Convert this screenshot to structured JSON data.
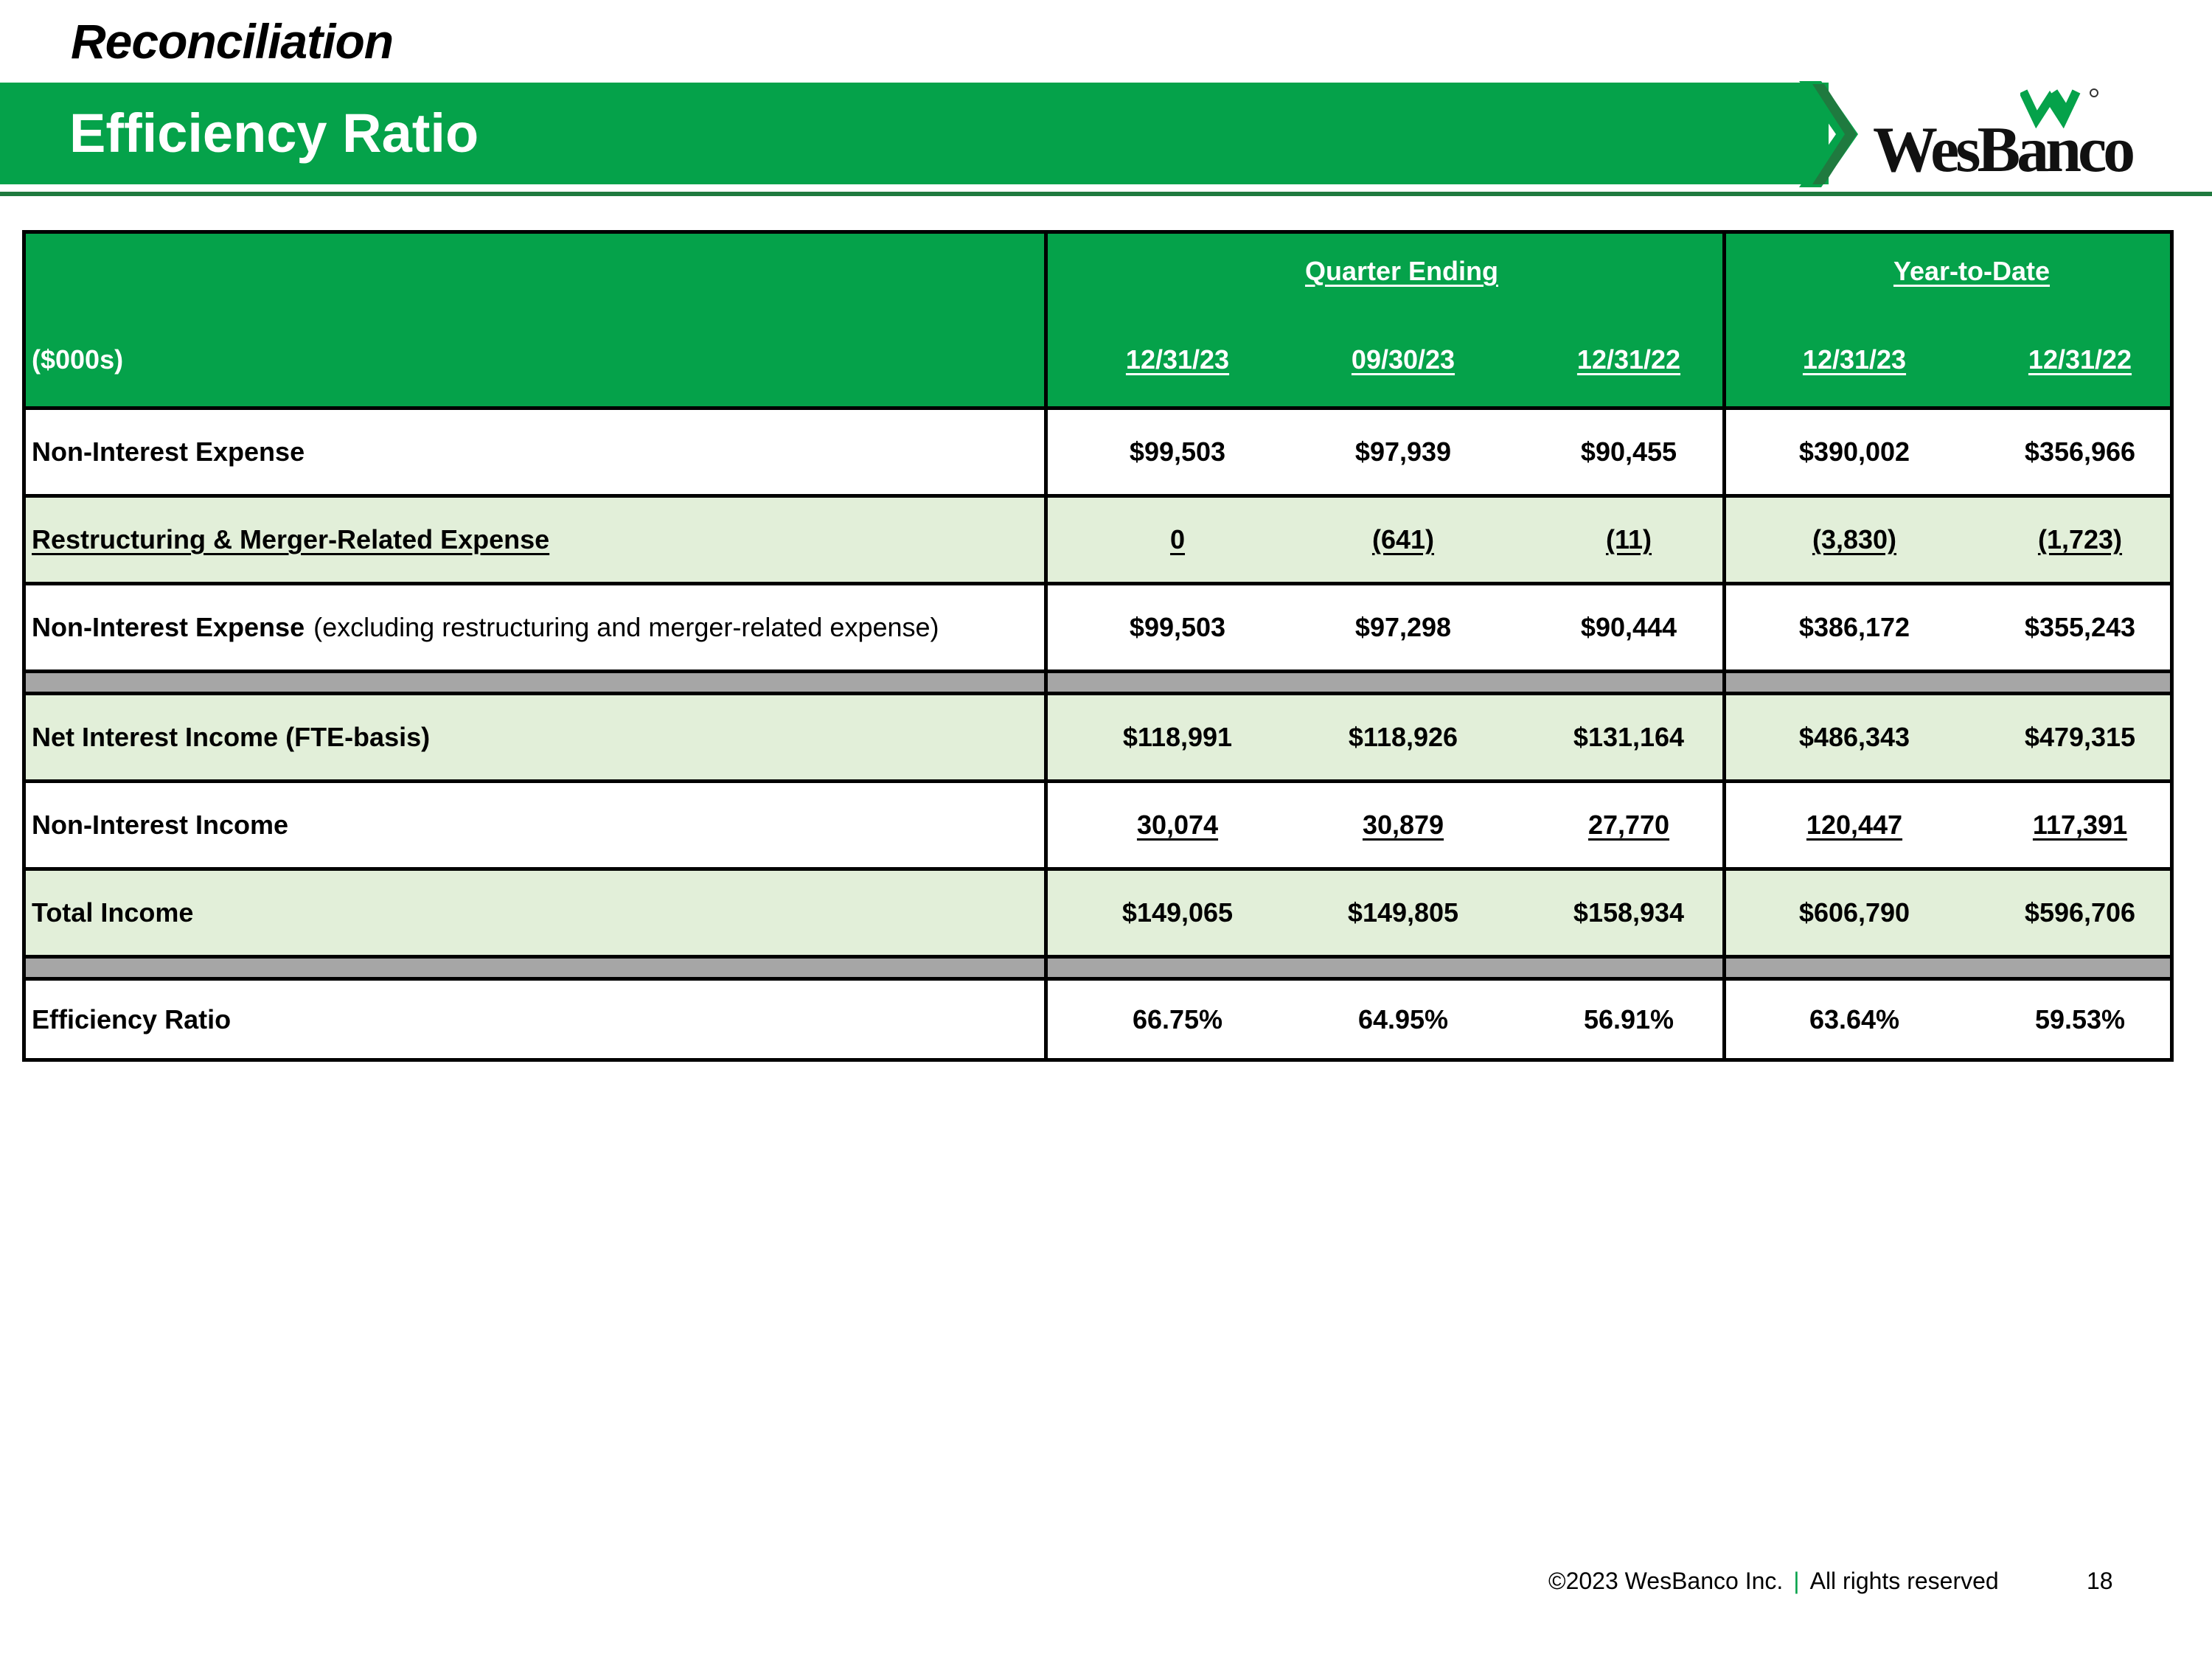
{
  "slide": {
    "section_title": "Reconciliation",
    "title": "Efficiency Ratio",
    "logo_text": "WesBanco",
    "brand_green": "#05a24a",
    "shade_green": "#e2efd9",
    "separator_gray": "#a6a6a6"
  },
  "table": {
    "units_label": "($000s)",
    "group_headers": [
      "Quarter Ending",
      "Year-to-Date"
    ],
    "columns": [
      "12/31/23",
      "09/30/23",
      "12/31/22",
      "12/31/23",
      "12/31/22"
    ],
    "rows": [
      {
        "label": "Non-Interest Expense",
        "note": "",
        "values": [
          "$99,503",
          "$97,939",
          "$90,455",
          "$390,002",
          "$356,966"
        ]
      },
      {
        "label": "Restructuring & Merger-Related Expense",
        "note": "",
        "values": [
          "0",
          "(641)",
          "(11)",
          "(3,830)",
          "(1,723)"
        ]
      },
      {
        "label": "Non-Interest Expense",
        "note": "(excluding restructuring and merger-related expense)",
        "values": [
          "$99,503",
          "$97,298",
          "$90,444",
          "$386,172",
          "$355,243"
        ]
      },
      {
        "label": "Net Interest Income (FTE-basis)",
        "note": "",
        "values": [
          "$118,991",
          "$118,926",
          "$131,164",
          "$486,343",
          "$479,315"
        ]
      },
      {
        "label": "Non-Interest Income",
        "note": "",
        "values": [
          "30,074",
          "30,879",
          "27,770",
          "120,447",
          "117,391"
        ]
      },
      {
        "label": "Total Income",
        "note": "",
        "values": [
          "$149,065",
          "$149,805",
          "$158,934",
          "$606,790",
          "$596,706"
        ]
      },
      {
        "label": "Efficiency Ratio",
        "note": "",
        "values": [
          "66.75%",
          "64.95%",
          "56.91%",
          "63.64%",
          "59.53%"
        ]
      }
    ]
  },
  "footer": {
    "copyright": "©2023 WesBanco Inc.",
    "separator": "|",
    "rights": "All rights reserved",
    "page_number": "18"
  }
}
